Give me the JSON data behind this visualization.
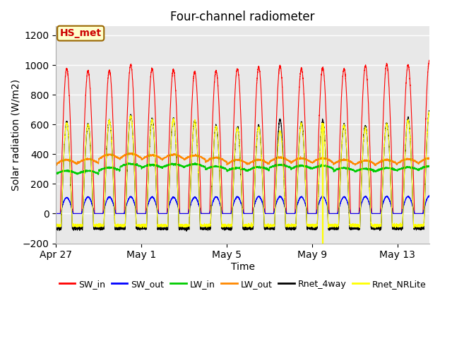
{
  "title": "Four-channel radiometer",
  "xlabel": "Time",
  "ylabel": "Solar radiation (W/m2)",
  "ylim": [
    -200,
    1260
  ],
  "yticks": [
    -200,
    0,
    200,
    400,
    600,
    800,
    1000,
    1200
  ],
  "x_labels": [
    "Apr 27",
    "May 1",
    "May 5",
    "May 9",
    "May 13"
  ],
  "x_tick_pos": [
    0,
    4,
    8,
    12,
    16
  ],
  "xlim": [
    0,
    17.5
  ],
  "legend_labels": [
    "SW_in",
    "SW_out",
    "LW_in",
    "LW_out",
    "Rnet_4way",
    "Rnet_NRLite"
  ],
  "legend_colors": [
    "#ff0000",
    "#0000ff",
    "#00cc00",
    "#ff8800",
    "#000000",
    "#ffff00"
  ],
  "annotation_text": "HS_met",
  "annotation_bg": "#ffffcc",
  "annotation_border": "#996600",
  "annotation_text_color": "#cc0000",
  "plot_bg_color": "#e8e8e8",
  "title_fontsize": 12,
  "label_fontsize": 10,
  "tick_fontsize": 10,
  "n_days": 18,
  "points_per_day": 288,
  "sw_in_peaks": [
    975,
    960,
    965,
    1000,
    975,
    970,
    955,
    960,
    975,
    985,
    995,
    975,
    980,
    975,
    995,
    1005,
    1000,
    1025
  ],
  "sw_out_peaks": [
    108,
    112,
    112,
    113,
    112,
    110,
    110,
    112,
    112,
    115,
    115,
    112,
    115,
    112,
    115,
    115,
    115,
    118
  ],
  "lw_in_base": [
    268,
    268,
    290,
    315,
    308,
    313,
    313,
    298,
    287,
    292,
    308,
    302,
    302,
    287,
    282,
    287,
    292,
    298
  ],
  "lw_out_base": [
    332,
    337,
    367,
    373,
    363,
    367,
    362,
    347,
    332,
    332,
    347,
    342,
    342,
    332,
    327,
    332,
    337,
    342
  ],
  "rnet_4way_peaks": [
    615,
    600,
    630,
    660,
    635,
    640,
    625,
    590,
    580,
    590,
    635,
    615,
    625,
    600,
    590,
    610,
    640,
    685
  ],
  "rnet_nrlite_peaks": [
    610,
    600,
    625,
    655,
    630,
    635,
    620,
    585,
    575,
    580,
    555,
    605,
    615,
    595,
    580,
    600,
    630,
    680
  ],
  "night_rnet": -100,
  "night_nrlite": -80,
  "may9_dip_day": 12,
  "figsize": [
    6.4,
    4.8
  ],
  "dpi": 100
}
